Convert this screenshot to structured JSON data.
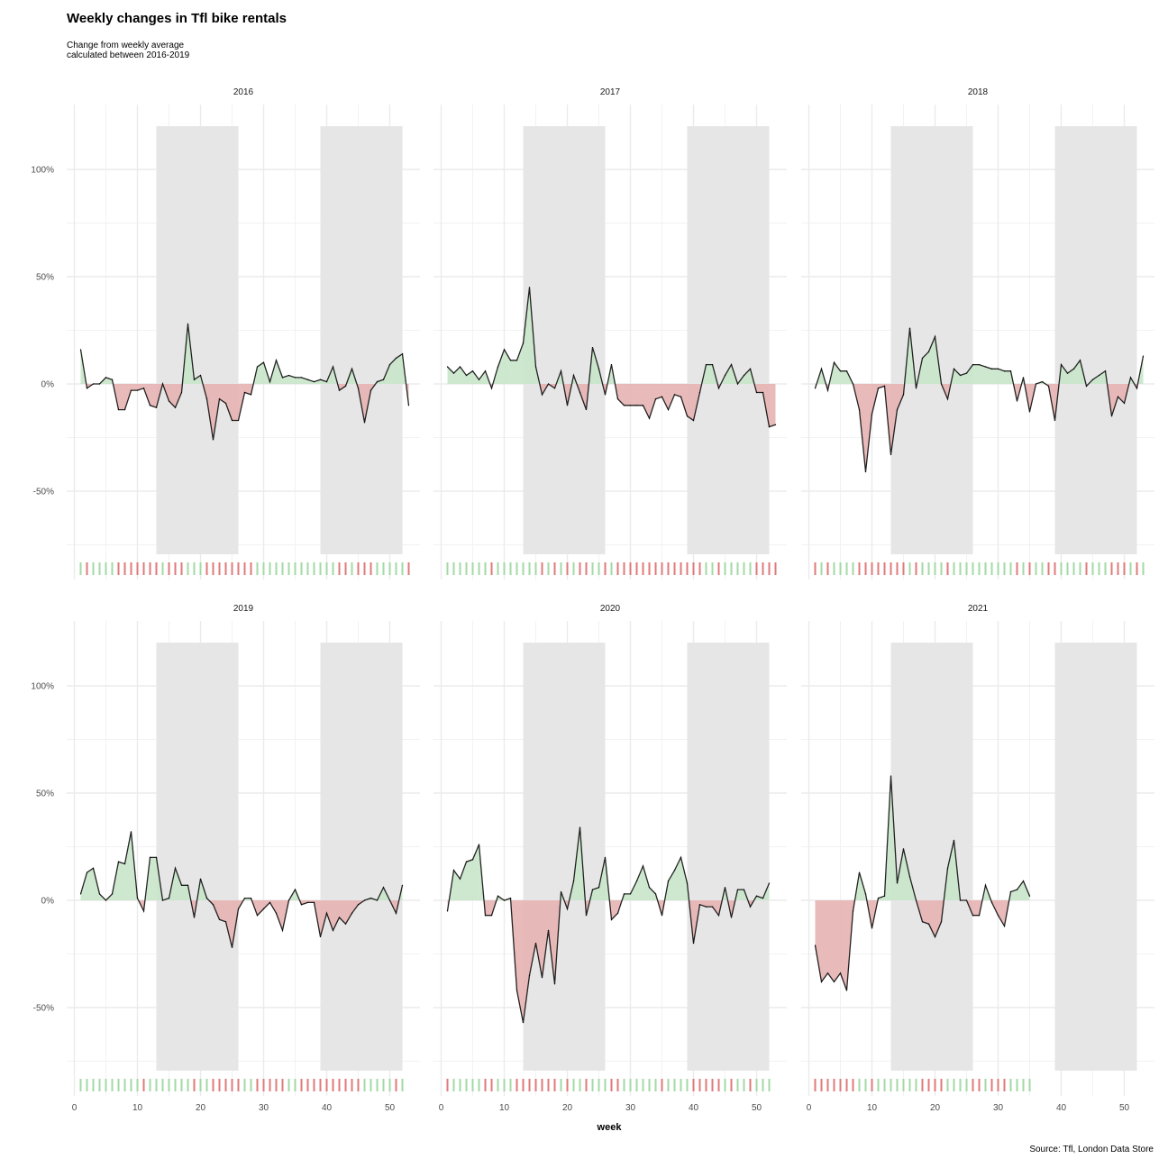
{
  "title": "Weekly changes in Tfl bike rentals",
  "subtitle": "Change from weekly average\ncalculated between 2016-2019",
  "caption": "Source: Tfl, London Data Store",
  "colors": {
    "positive": "#c8e6c9",
    "negative": "#e6b3b3",
    "positive_rug": "#a3d9a5",
    "negative_rug": "#e07a7a",
    "line": "#000000",
    "shade": "#e6e6e6",
    "grid": "#ebebeb"
  },
  "chart_data": {
    "type": "area",
    "xlabel": "week",
    "ylabel": "",
    "xlim": [
      0,
      52
    ],
    "ylim": [
      -80,
      120
    ],
    "x_ticks": [
      0,
      10,
      20,
      30,
      40,
      50
    ],
    "y_ticks": [
      -50,
      0,
      50,
      100
    ],
    "y_tick_labels": [
      "-50%",
      "0%",
      "50%",
      "100%"
    ],
    "shaded_weeks": [
      [
        13,
        26
      ],
      [
        39,
        52
      ]
    ],
    "panels": [
      {
        "year": "2016",
        "values": [
          16,
          -2,
          0,
          0,
          3,
          2,
          -12,
          -12,
          -3,
          -3,
          -2,
          -10,
          -11,
          0,
          -8,
          -11,
          -4,
          28,
          2,
          4,
          -7,
          -26,
          -7,
          -9,
          -17,
          -17,
          -4,
          -5,
          8,
          10,
          1,
          11,
          3,
          4,
          3,
          3,
          2,
          1,
          2,
          1,
          8,
          -3,
          -1,
          7,
          -2,
          -18,
          -3,
          1,
          2,
          9,
          12,
          14,
          -10
        ]
      },
      {
        "year": "2017",
        "values": [
          8,
          5,
          8,
          4,
          6,
          2,
          6,
          -2,
          8,
          16,
          11,
          11,
          19,
          45,
          8,
          -5,
          0,
          -2,
          6,
          -10,
          4,
          -4,
          -12,
          17,
          7,
          -5,
          9,
          -7,
          -10,
          -10,
          -10,
          -10,
          -16,
          -7,
          -6,
          -12,
          -5,
          -6,
          -15,
          -17,
          -4,
          9,
          9,
          -2,
          4,
          9,
          0,
          4,
          7,
          -4,
          -4,
          -20,
          -19
        ]
      },
      {
        "year": "2018",
        "values": [
          -2,
          7,
          -3,
          10,
          6,
          6,
          0,
          -12,
          -41,
          -14,
          -2,
          -1,
          -33,
          -12,
          -5,
          26,
          -2,
          12,
          15,
          22,
          0,
          -7,
          7,
          4,
          5,
          9,
          9,
          8,
          7,
          7,
          6,
          6,
          -8,
          3,
          -13,
          0,
          1,
          -1,
          -17,
          9,
          5,
          7,
          11,
          -1,
          2,
          4,
          6,
          -15,
          -6,
          -9,
          3,
          -2,
          13
        ]
      },
      {
        "year": "2019",
        "values": [
          3,
          13,
          15,
          3,
          0,
          3,
          18,
          17,
          32,
          1,
          -5,
          20,
          20,
          0,
          1,
          15,
          7,
          7,
          -8,
          10,
          1,
          -2,
          -9,
          -10,
          -22,
          -4,
          1,
          1,
          -7,
          -4,
          -1,
          -6,
          -14,
          0,
          5,
          -2,
          -1,
          -1,
          -17,
          -6,
          -14,
          -8,
          -11,
          -6,
          -2,
          0,
          1,
          0,
          6,
          0,
          -6,
          7
        ]
      },
      {
        "year": "2020",
        "values": [
          -5,
          14,
          10,
          18,
          19,
          26,
          -7,
          -7,
          2,
          0,
          1,
          -42,
          -57,
          -35,
          -20,
          -36,
          -14,
          -39,
          4,
          -4,
          9,
          34,
          -7,
          5,
          6,
          20,
          -9,
          -6,
          3,
          3,
          9,
          16,
          6,
          3,
          -7,
          9,
          14,
          20,
          8,
          -20,
          -2,
          -3,
          -3,
          -7,
          6,
          -8,
          5,
          5,
          -3,
          2,
          1,
          8
        ]
      },
      {
        "year": "2021",
        "values": [
          -21,
          -38,
          -34,
          -38,
          -34,
          -42,
          -5,
          13,
          3,
          -13,
          1,
          2,
          58,
          8,
          24,
          11,
          0,
          -10,
          -11,
          -17,
          -10,
          15,
          28,
          0,
          0,
          -7,
          -7,
          7,
          -1,
          -7,
          -12,
          4,
          5,
          9,
          2
        ]
      }
    ]
  }
}
